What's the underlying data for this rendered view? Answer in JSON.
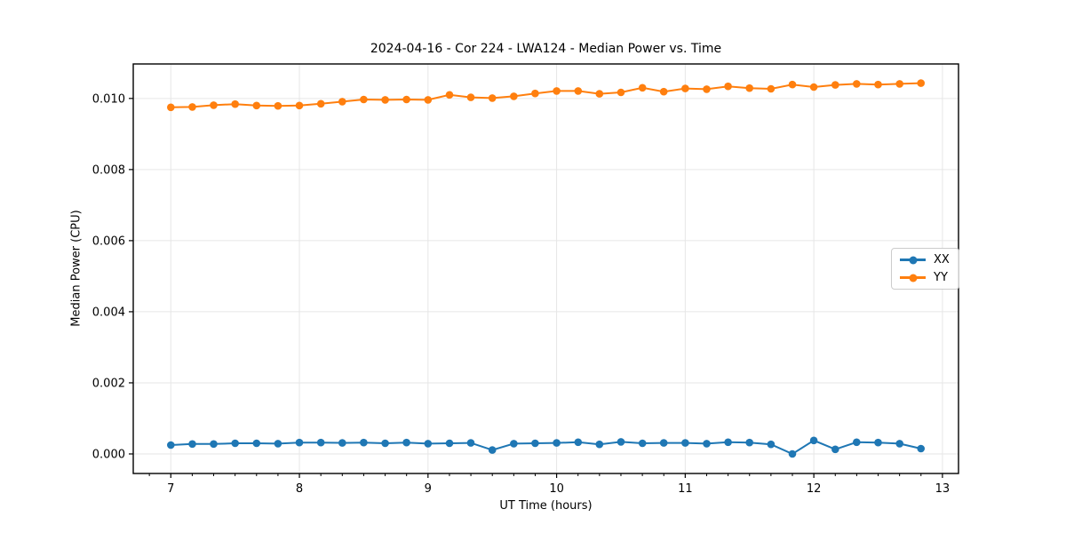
{
  "chart_data": {
    "type": "line",
    "title": "2024-04-16 - Cor 224 - LWA124 - Median Power vs. Time",
    "xlabel": "UT Time (hours)",
    "ylabel": "Median Power (CPU)",
    "xlim": [
      6.708,
      13.125
    ],
    "ylim": [
      -0.00055,
      0.01097
    ],
    "x_ticks": [
      7,
      8,
      9,
      10,
      11,
      12,
      13
    ],
    "x_tick_labels": [
      "7",
      "8",
      "9",
      "10",
      "11",
      "12",
      "13"
    ],
    "x_minor_tick_step": 0.1666667,
    "y_ticks": [
      0.0,
      0.002,
      0.004,
      0.006,
      0.008,
      0.01
    ],
    "y_tick_labels": [
      "0.000",
      "0.002",
      "0.004",
      "0.006",
      "0.008",
      "0.010"
    ],
    "grid": true,
    "grid_color": "#e6e6e6",
    "spine_color": "#000000",
    "legend_position": "center right",
    "x": [
      7.0,
      7.167,
      7.333,
      7.5,
      7.667,
      7.833,
      8.0,
      8.167,
      8.333,
      8.5,
      8.667,
      8.833,
      9.0,
      9.167,
      9.333,
      9.5,
      9.667,
      9.833,
      10.0,
      10.167,
      10.333,
      10.5,
      10.667,
      10.833,
      11.0,
      11.167,
      11.333,
      11.5,
      11.667,
      11.833,
      12.0,
      12.167,
      12.333,
      12.5,
      12.667,
      12.833
    ],
    "series": [
      {
        "name": "XX",
        "color": "#1f77b4",
        "values": [
          0.00025,
          0.00028,
          0.00028,
          0.0003,
          0.0003,
          0.00029,
          0.00032,
          0.00032,
          0.00031,
          0.00032,
          0.0003,
          0.00032,
          0.00029,
          0.0003,
          0.00031,
          0.00011,
          0.00029,
          0.0003,
          0.00031,
          0.00033,
          0.00027,
          0.00034,
          0.0003,
          0.00031,
          0.00031,
          0.00029,
          0.00033,
          0.00032,
          0.00027,
          0.0,
          0.00038,
          0.00013,
          0.00033,
          0.00032,
          0.00029,
          0.00015
        ]
      },
      {
        "name": "YY",
        "color": "#ff7f0e",
        "values": [
          0.00975,
          0.00976,
          0.00981,
          0.00984,
          0.0098,
          0.00979,
          0.0098,
          0.00985,
          0.00991,
          0.00997,
          0.00996,
          0.00997,
          0.00996,
          0.0101,
          0.01003,
          0.01001,
          0.01006,
          0.01014,
          0.01021,
          0.01021,
          0.01013,
          0.01017,
          0.0103,
          0.01019,
          0.01028,
          0.01026,
          0.01034,
          0.01029,
          0.01027,
          0.01039,
          0.01032,
          0.01038,
          0.01041,
          0.01039,
          0.01041,
          0.01043
        ]
      }
    ]
  },
  "legend": {
    "entries": [
      {
        "label": "XX",
        "color": "#1f77b4"
      },
      {
        "label": "YY",
        "color": "#ff7f0e"
      }
    ]
  }
}
